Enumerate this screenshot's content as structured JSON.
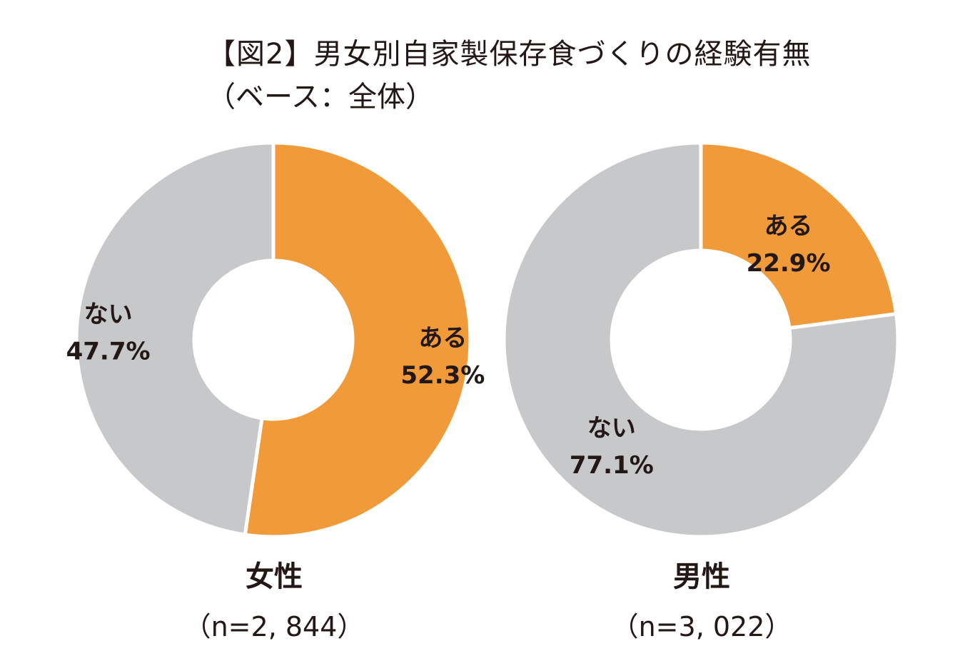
{
  "figure": {
    "title": "【図2】男女別自家製保存食づくりの経験有無",
    "subtitle": "（ベース：全体）"
  },
  "colors": {
    "yes": "#F09A3A",
    "no": "#C7C8CA",
    "text": "#231815",
    "background": "#FFFFFF"
  },
  "chart_data": [
    {
      "type": "pie",
      "donut": true,
      "group": "女性",
      "n_label": "（n=2, 844）",
      "slices": [
        {
          "label": "ある",
          "value": 52.3,
          "value_label": "52.3%",
          "color_key": "yes"
        },
        {
          "label": "ない",
          "value": 47.7,
          "value_label": "47.7%",
          "color_key": "no"
        }
      ]
    },
    {
      "type": "pie",
      "donut": true,
      "group": "男性",
      "n_label": "（n=3, 022）",
      "slices": [
        {
          "label": "ある",
          "value": 22.9,
          "value_label": "22.9%",
          "color_key": "yes"
        },
        {
          "label": "ない",
          "value": 77.1,
          "value_label": "77.1%",
          "color_key": "no"
        }
      ]
    }
  ]
}
